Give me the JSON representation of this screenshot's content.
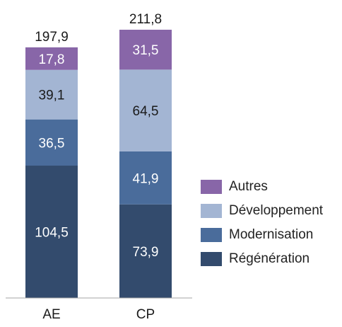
{
  "chart_data": {
    "type": "bar",
    "stacked": true,
    "categories": [
      "AE",
      "CP"
    ],
    "totals": [
      "197,9",
      "211,8"
    ],
    "series": [
      {
        "name": "Régénération",
        "color": "#334b6d",
        "values": [
          104.5,
          73.9
        ],
        "labels": [
          "104,5",
          "73,9"
        ]
      },
      {
        "name": "Modernisation",
        "color": "#4a6c9b",
        "values": [
          36.5,
          41.9
        ],
        "labels": [
          "36,5",
          "41,9"
        ]
      },
      {
        "name": "Développement",
        "color": "#a3b5d3",
        "values": [
          39.1,
          64.5
        ],
        "labels": [
          "39,1",
          "64,5"
        ]
      },
      {
        "name": "Autres",
        "color": "#8866a8",
        "values": [
          17.8,
          31.5
        ],
        "labels": [
          "17,8",
          "31,5"
        ]
      }
    ],
    "ylim": [
      0,
      211.8
    ],
    "grid": false,
    "legend_position": "right"
  },
  "legend": {
    "items": [
      {
        "label": "Autres",
        "color": "#8866a8"
      },
      {
        "label": "Développement",
        "color": "#a3b5d3"
      },
      {
        "label": "Modernisation",
        "color": "#4a6c9b"
      },
      {
        "label": "Régénération",
        "color": "#334b6d"
      }
    ]
  }
}
